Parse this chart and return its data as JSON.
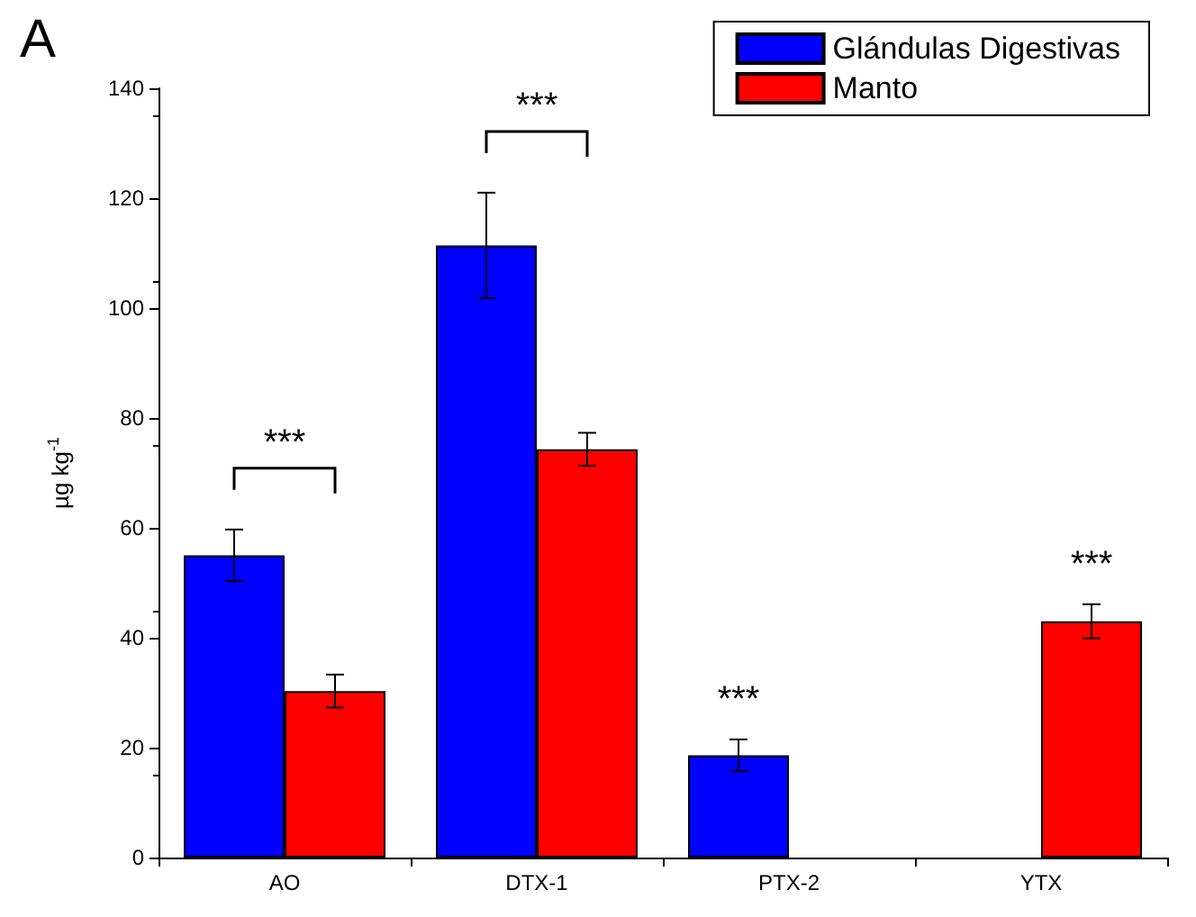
{
  "chart_data": {
    "type": "bar",
    "title": "A",
    "ylabel": "µg kg$^{-1}$",
    "categories": [
      "AO",
      "DTX-1",
      "PTX-2",
      "YTX"
    ],
    "series": [
      {
        "name": "Glándulas Digestivas",
        "color": "#0000ff",
        "values": [
          55,
          111.4,
          18.6,
          null
        ],
        "errors": [
          4.7,
          9.6,
          2.9,
          null
        ]
      },
      {
        "name": "Manto",
        "color": "#ff0000",
        "values": [
          30.3,
          74.3,
          null,
          43
        ],
        "errors": [
          3,
          3,
          null,
          3.1
        ]
      }
    ],
    "ylim": [
      0,
      140
    ],
    "yticks": [
      0,
      20,
      40,
      60,
      80,
      100,
      120,
      140
    ],
    "grid": false,
    "legend": "top right",
    "annotations": [
      "***",
      "***",
      "***",
      "***"
    ]
  }
}
